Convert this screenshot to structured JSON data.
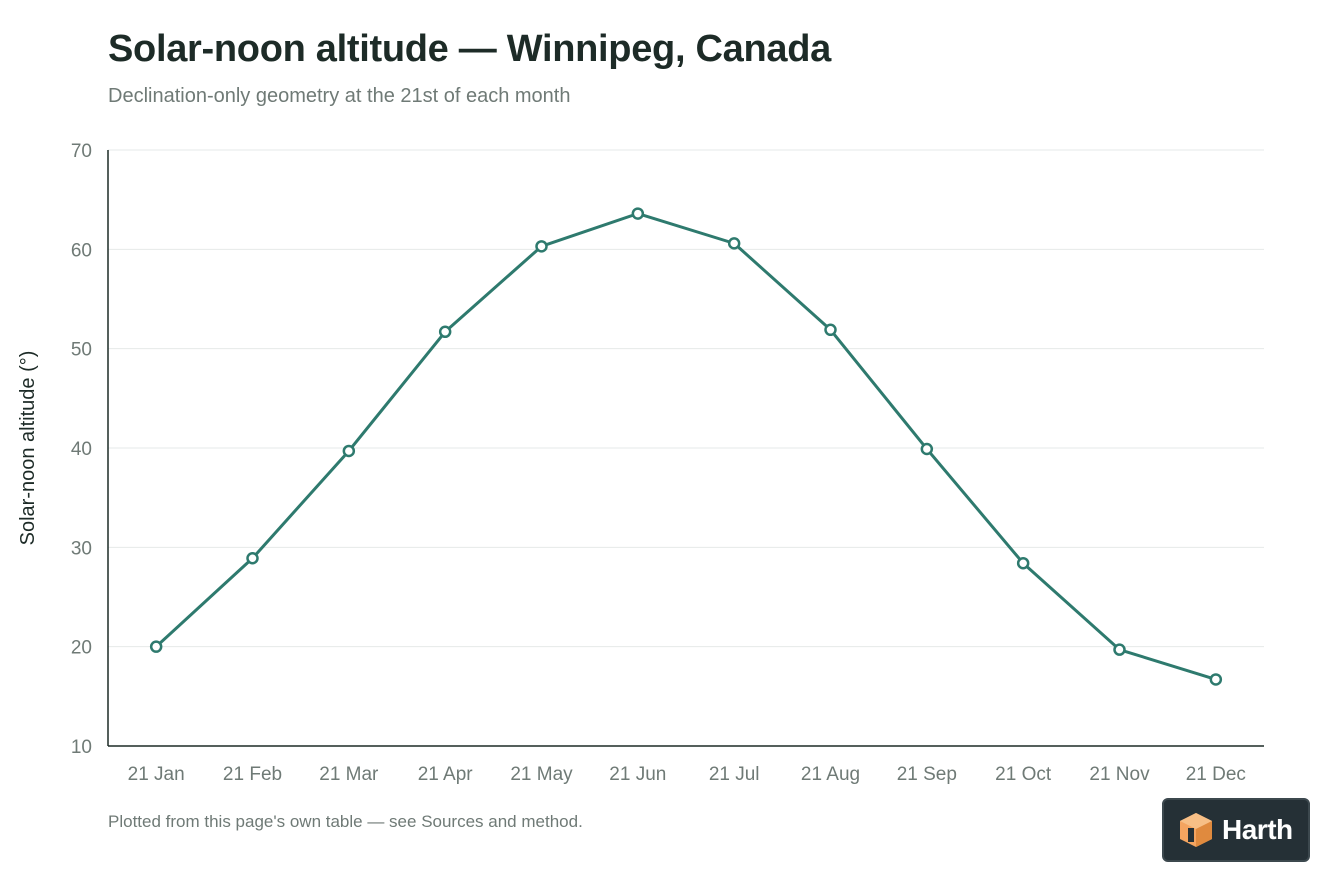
{
  "title": "Solar-noon altitude — Winnipeg, Canada",
  "subtitle": "Declination-only geometry at the 21st of each month",
  "footnote": "Plotted from this page's own table — see Sources and method.",
  "logo": {
    "text": "Harth",
    "icon": "harth-cube-logo-icon"
  },
  "colors": {
    "line": "#2e7a6e",
    "marker_fill": "#ffffff",
    "grid": "#e6e9e8",
    "axis": "#1d2b27",
    "text_muted": "#6f7a76",
    "logo_bg": "#253036",
    "logo_accent": "#f4a460"
  },
  "chart_data": {
    "type": "line",
    "title": "Solar-noon altitude — Winnipeg, Canada",
    "subtitle": "Declination-only geometry at the 21st of each month",
    "xlabel": "",
    "ylabel": "Solar-noon altitude (°)",
    "categories": [
      "21 Jan",
      "21 Feb",
      "21 Mar",
      "21 Apr",
      "21 May",
      "21 Jun",
      "21 Jul",
      "21 Aug",
      "21 Sep",
      "21 Oct",
      "21 Nov",
      "21 Dec"
    ],
    "series": [
      {
        "values": [
          20.0,
          28.9,
          39.7,
          51.7,
          60.3,
          63.6,
          60.6,
          51.9,
          39.9,
          28.4,
          19.7,
          16.7
        ]
      }
    ],
    "ylim": [
      10,
      70
    ],
    "yticks": [
      10,
      20,
      30,
      40,
      50,
      60,
      70
    ],
    "grid": true,
    "legend": "none"
  }
}
